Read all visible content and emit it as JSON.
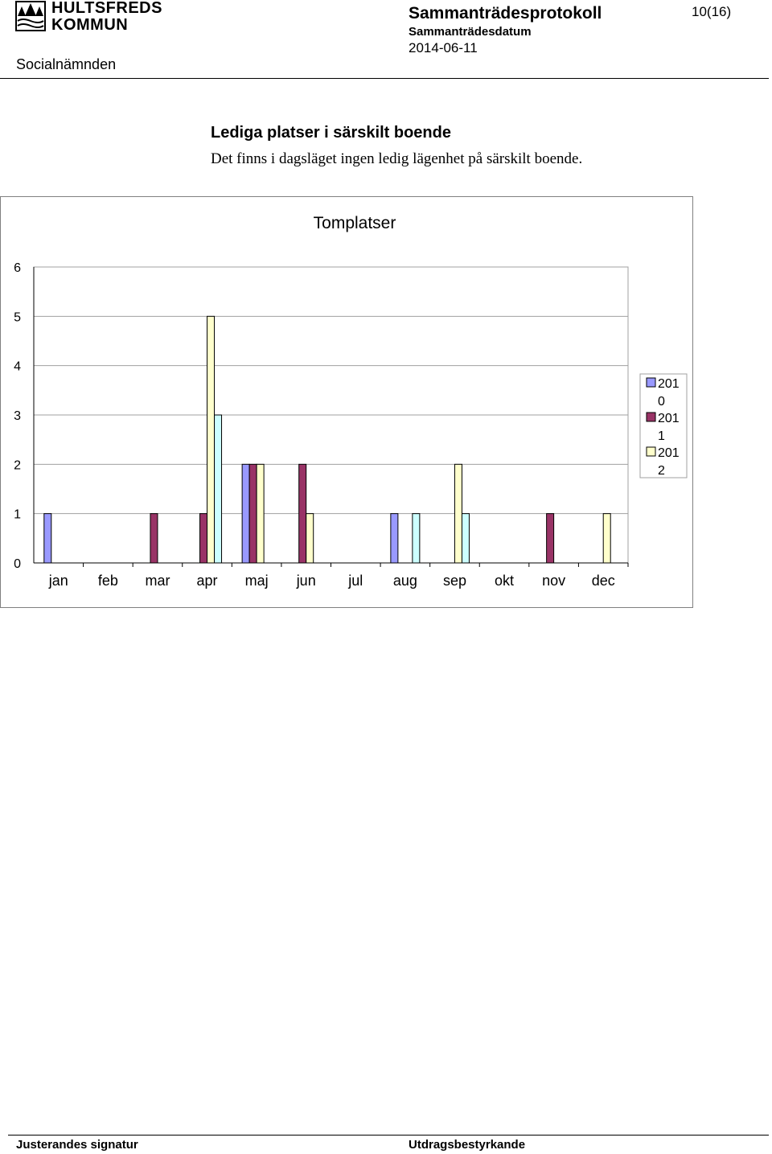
{
  "header": {
    "org_line1": "HULTSFREDS",
    "org_line2": "KOMMUN",
    "department": "Socialnämnden",
    "doc_title": "Sammanträdesprotokoll",
    "date_label": "Sammanträdesdatum",
    "date_value": "2014-06-11",
    "page": "10(16)"
  },
  "section": {
    "title": "Lediga platser i särskilt boende",
    "body": "Det finns i dagsläget ingen ledig lägenhet på särskilt boende."
  },
  "chart_data": {
    "type": "bar",
    "title": "Tomplatser",
    "categories": [
      "jan",
      "feb",
      "mar",
      "apr",
      "maj",
      "jun",
      "jul",
      "aug",
      "sep",
      "okt",
      "nov",
      "dec"
    ],
    "ylim": [
      0,
      6
    ],
    "yticks": [
      "0",
      "1",
      "2",
      "3",
      "4",
      "5",
      "6"
    ],
    "grid": true,
    "legend": "right",
    "series": [
      {
        "name_lines": [
          "201",
          "0"
        ],
        "color": "#9999ff",
        "values": [
          1,
          0,
          0,
          0,
          2,
          0,
          0,
          1,
          0,
          0,
          0,
          0
        ]
      },
      {
        "name_lines": [
          "201",
          "1"
        ],
        "color": "#993366",
        "values": [
          0,
          0,
          1,
          1,
          2,
          2,
          0,
          0,
          0,
          0,
          1,
          0
        ]
      },
      {
        "name_lines": [
          "201",
          "2"
        ],
        "color": "#ffffcc",
        "values": [
          0,
          0,
          0,
          5,
          2,
          1,
          0,
          0,
          2,
          0,
          0,
          1
        ]
      },
      {
        "color": "#ccffff",
        "values": [
          0,
          0,
          0,
          3,
          0,
          0,
          0,
          1,
          1,
          0,
          0,
          0
        ]
      }
    ]
  },
  "footer": {
    "left": "Justerandes signatur",
    "right": "Utdragsbestyrkande"
  }
}
